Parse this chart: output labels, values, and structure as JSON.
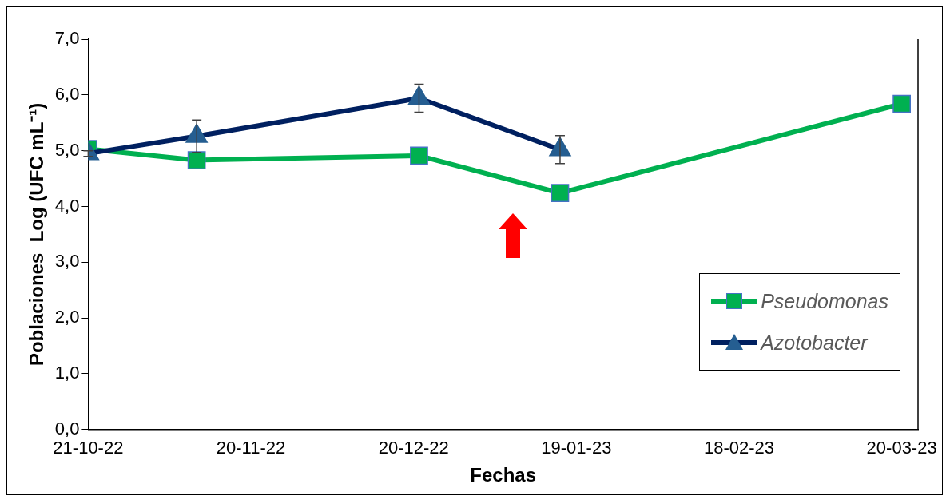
{
  "chart_data": {
    "type": "line",
    "xlabel": "Fechas",
    "ylabel": "Poblaciones  Log (UFC mL⁻¹)",
    "xlim": [
      "2022-10-21",
      "2023-03-23"
    ],
    "xticks": [
      {
        "value": "2022-10-21",
        "label": "21-10-22"
      },
      {
        "value": "2022-11-20",
        "label": "20-11-22"
      },
      {
        "value": "2022-12-20",
        "label": "20-12-22"
      },
      {
        "value": "2023-01-19",
        "label": "19-01-23"
      },
      {
        "value": "2023-02-18",
        "label": "18-02-23"
      },
      {
        "value": "2023-03-20",
        "label": "20-03-23"
      }
    ],
    "ylim": [
      0,
      7
    ],
    "yticks": [
      {
        "value": 0,
        "label": "0,0"
      },
      {
        "value": 1,
        "label": "1,0"
      },
      {
        "value": 2,
        "label": "2,0"
      },
      {
        "value": 3,
        "label": "3,0"
      },
      {
        "value": 4,
        "label": "4,0"
      },
      {
        "value": 5,
        "label": "5,0"
      },
      {
        "value": 6,
        "label": "6,0"
      },
      {
        "value": 7,
        "label": "7,0"
      }
    ],
    "grid": false,
    "legend": "right",
    "line_style": "solid",
    "series": [
      {
        "name": "Pseudomonas",
        "color": "#00b050",
        "marker": "square",
        "x": [
          "2022-10-21",
          "2022-11-10",
          "2022-12-21",
          "2023-01-16",
          "2023-03-20"
        ],
        "values": [
          5.03,
          4.83,
          4.91,
          4.24,
          5.84
        ]
      },
      {
        "name": "Azotobacter",
        "color": "#002060",
        "marker": "triangle",
        "x": [
          "2022-10-21",
          "2022-11-10",
          "2022-12-21",
          "2023-01-16"
        ],
        "values": [
          4.95,
          5.26,
          5.94,
          5.02
        ],
        "errors": [
          0.05,
          0.29,
          0.25,
          0.25
        ]
      }
    ]
  }
}
